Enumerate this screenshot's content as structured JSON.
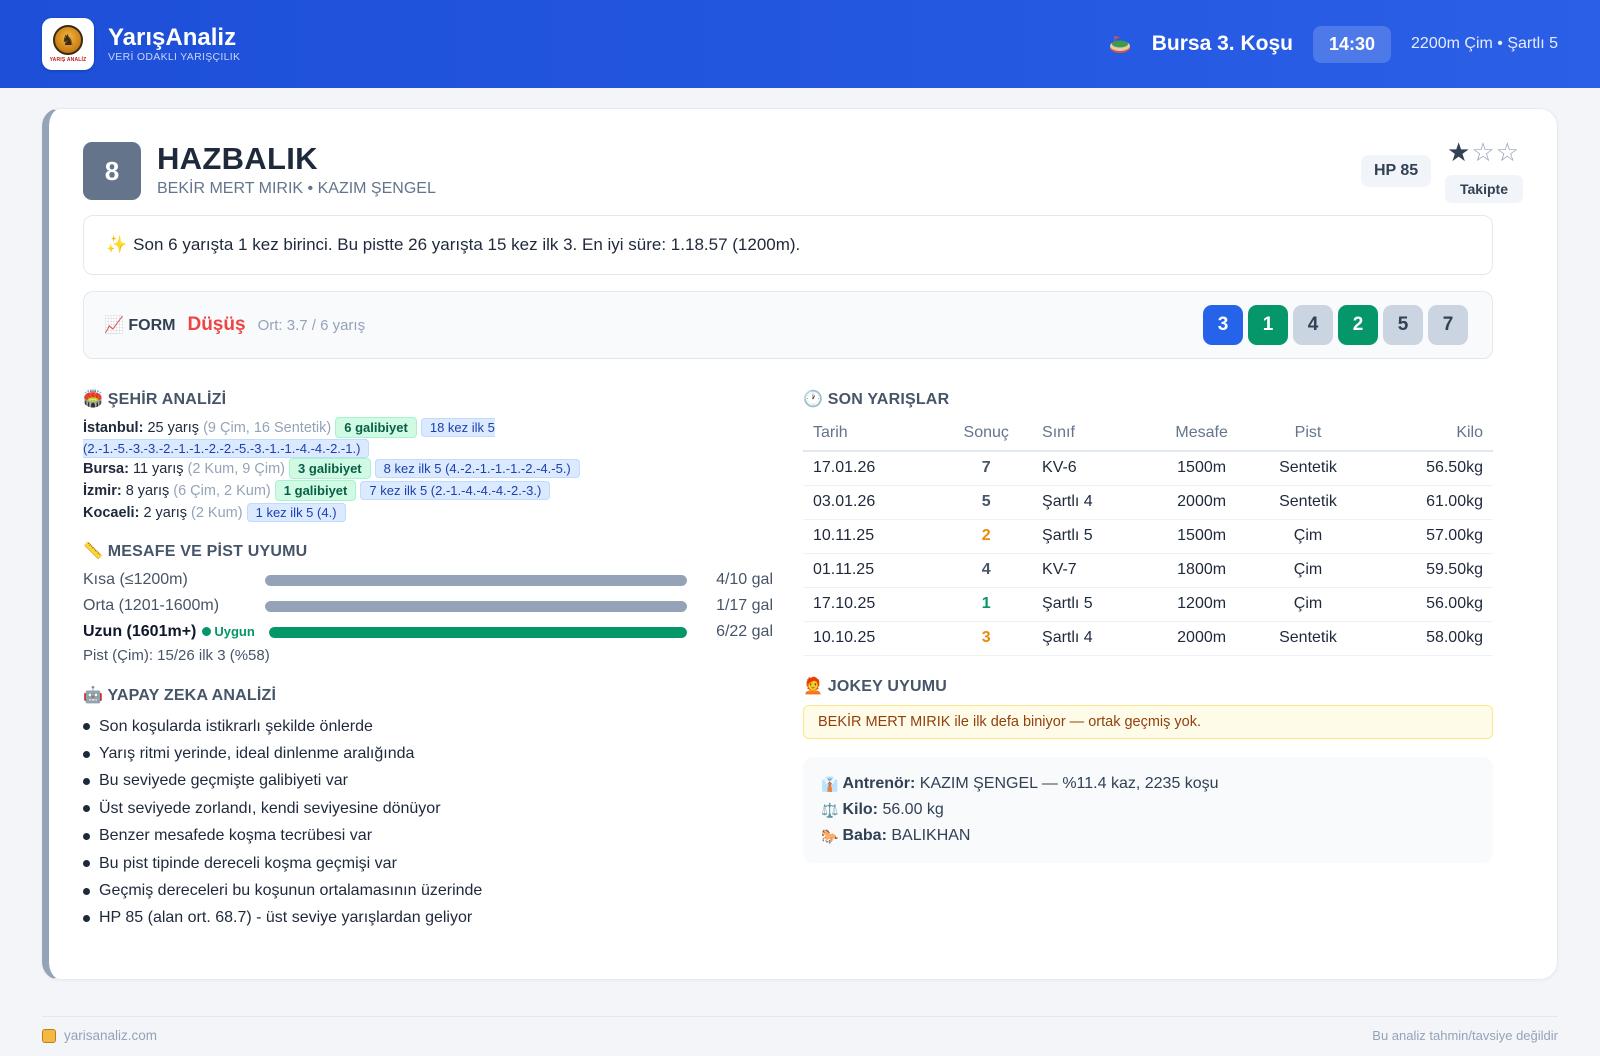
{
  "brand": {
    "name": "YarışAnaliz",
    "tagline": "VERİ ODAKLI YARIŞÇILIK",
    "logo_text": "YARIŞ ANALİZ"
  },
  "race": {
    "title": "Bursa 3. Koşu",
    "time": "14:30",
    "conditions": "2200m Çim • Şartlı 5"
  },
  "horse": {
    "number": "8",
    "name": "HAZBALIK",
    "subtitle": "BEKİR MERT MIRIK • KAZIM ŞENGEL",
    "hp": "HP 85",
    "rating": 1,
    "rating_max": 3,
    "follow_label": "Takipte"
  },
  "summary": {
    "icon": "✨",
    "text": "Son 6 yarışta 1 kez birinci. Bu pistte 26 yarışta 15 kez ilk 3. En iyi süre: 1.18.57 (1200m)."
  },
  "form": {
    "icon": "📈",
    "label": "FORM",
    "trend": "Düşüş",
    "avg": "Ort: 3.7 / 6 yarış",
    "results": [
      {
        "value": "3",
        "bg": "#2563eb",
        "fg": "#ffffff"
      },
      {
        "value": "1",
        "bg": "#059669",
        "fg": "#ffffff"
      },
      {
        "value": "4",
        "bg": "#cbd5e1",
        "fg": "#334155"
      },
      {
        "value": "2",
        "bg": "#059669",
        "fg": "#ffffff"
      },
      {
        "value": "5",
        "bg": "#cbd5e1",
        "fg": "#334155"
      },
      {
        "value": "7",
        "bg": "#cbd5e1",
        "fg": "#334155"
      }
    ]
  },
  "city_analysis": {
    "icon": "🏟️",
    "title": "ŞEHİR ANALİZİ",
    "cities": [
      {
        "name": "İstanbul:",
        "races": "25 yarış",
        "detail": "(9 Çim, 16 Sentetik)",
        "wins": "6 galibiyet",
        "top": "18 kez ilk 5 (2.-1.-5.-3.-3.-2.-1.-1.-2.-2.-5.-3.-1.-1.-4.-4.-2.-1.)"
      },
      {
        "name": "Bursa:",
        "races": "11 yarış",
        "detail": "(2 Kum, 9 Çim)",
        "wins": "3 galibiyet",
        "top": "8 kez ilk 5 (4.-2.-1.-1.-1.-2.-4.-5.)"
      },
      {
        "name": "İzmir:",
        "races": "8 yarış",
        "detail": "(6 Çim, 2 Kum)",
        "wins": "1 galibiyet",
        "top": "7 kez ilk 5 (2.-1.-4.-4.-4.-2.-3.)"
      },
      {
        "name": "Kocaeli:",
        "races": "2 yarış",
        "detail": "(2 Kum)",
        "wins": "",
        "top": "1 kez ilk 5 (4.)"
      }
    ]
  },
  "distance": {
    "icon": "📏",
    "title": "MESAFE VE PİST UYUMU",
    "rows": [
      {
        "label": "Kısa (≤1200m)",
        "value": "4/10 gal",
        "fill": 1.0,
        "color": "#94a3b8",
        "badge": ""
      },
      {
        "label": "Orta (1201-1600m)",
        "value": "1/17 gal",
        "fill": 1.0,
        "color": "#94a3b8",
        "badge": ""
      },
      {
        "label": "Uzun (1601m+)",
        "value": "6/22 gal",
        "fill": 1.0,
        "color": "#059669",
        "badge": "Uygun"
      }
    ],
    "pist": "Pist (Çim): 15/26 ilk 3 (%58)"
  },
  "ai": {
    "icon": "🤖",
    "title": "YAPAY ZEKA ANALİZİ",
    "items": [
      "Son koşularda istikrarlı şekilde önlerde",
      "Yarış ritmi yerinde, ideal dinlenme aralığında",
      "Bu seviyede geçmişte galibiyeti var",
      "Üst seviyede zorlandı, kendi seviyesine dönüyor",
      "Benzer mesafede koşma tecrübesi var",
      "Bu pist tipinde dereceli koşma geçmişi var",
      "Geçmiş dereceleri bu koşunun ortalamasının üzerinde",
      "HP 85 (alan ort. 68.7) - üst seviye yarışlardan geliyor"
    ]
  },
  "recent": {
    "icon": "🕐",
    "title": "SON YARIŞLAR",
    "columns": [
      "Tarih",
      "Sonuç",
      "Sınıf",
      "Mesafe",
      "Pist",
      "Kilo"
    ],
    "rows": [
      {
        "date": "17.01.26",
        "result": "7",
        "color": "#475569",
        "class": "KV-6",
        "distance": "1500m",
        "track": "Sentetik",
        "weight": "56.50kg"
      },
      {
        "date": "03.01.26",
        "result": "5",
        "color": "#475569",
        "class": "Şartlı 4",
        "distance": "2000m",
        "track": "Sentetik",
        "weight": "61.00kg"
      },
      {
        "date": "10.11.25",
        "result": "2",
        "color": "#ea8a0c",
        "class": "Şartlı 5",
        "distance": "1500m",
        "track": "Çim",
        "weight": "57.00kg"
      },
      {
        "date": "01.11.25",
        "result": "4",
        "color": "#475569",
        "class": "KV-7",
        "distance": "1800m",
        "track": "Çim",
        "weight": "59.50kg"
      },
      {
        "date": "17.10.25",
        "result": "1",
        "color": "#059669",
        "class": "Şartlı 5",
        "distance": "1200m",
        "track": "Çim",
        "weight": "56.00kg"
      },
      {
        "date": "10.10.25",
        "result": "3",
        "color": "#ea8a0c",
        "class": "Şartlı 4",
        "distance": "2000m",
        "track": "Sentetik",
        "weight": "58.00kg"
      }
    ]
  },
  "jockey": {
    "icon": "🧑‍🦰",
    "title": "JOKEY UYUMU",
    "note": "BEKİR MERT MIRIK ile ilk defa biniyor — ortak geçmiş yok."
  },
  "info": {
    "trainer_icon": "👔",
    "trainer_label": "Antrenör:",
    "trainer_value": "KAZIM ŞENGEL — %11.4 kaz, 2235 koşu",
    "weight_icon": "⚖️",
    "weight_label": "Kilo:",
    "weight_value": "56.00 kg",
    "sire_icon": "🐎",
    "sire_label": "Baba:",
    "sire_value": "BALIKHAN"
  },
  "footer": {
    "site": "yarisanaliz.com",
    "disclaimer": "Bu analiz tahmin/tavsiye değildir"
  }
}
